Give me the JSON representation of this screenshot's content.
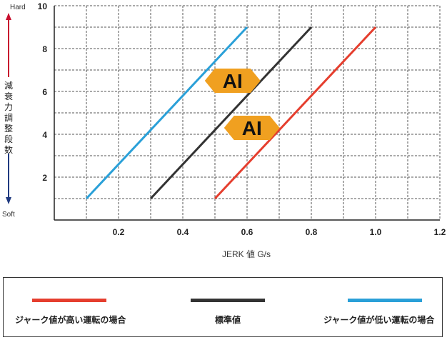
{
  "chart_data": {
    "type": "line",
    "xlabel": "JERK 値 G/s",
    "ylabel": "減衰力調整段数",
    "y_top_label": "Hard",
    "y_bottom_label": "Soft",
    "xlim": [
      0,
      1.2
    ],
    "ylim": [
      0,
      10
    ],
    "x_ticks": [
      "0.2",
      "0.4",
      "0.6",
      "0.8",
      "1.0",
      "1.2"
    ],
    "y_ticks": [
      "2",
      "4",
      "6",
      "8",
      "10"
    ],
    "grid": true,
    "series": [
      {
        "name": "ジャーク値が低い運転の場合",
        "color": "#2aa0d8",
        "x": [
          0.1,
          0.6
        ],
        "y": [
          1,
          9
        ]
      },
      {
        "name": "標準値",
        "color": "#333333",
        "x": [
          0.3,
          0.8
        ],
        "y": [
          1,
          9
        ]
      },
      {
        "name": "ジャーク値が高い運転の場合",
        "color": "#e53e2e",
        "x": [
          0.5,
          1.0
        ],
        "y": [
          1,
          9
        ]
      }
    ],
    "annotations": [
      {
        "text": "AI",
        "x": 0.555,
        "y": 6.5,
        "color": "#f0a020"
      },
      {
        "text": "AI",
        "x": 0.615,
        "y": 4.3,
        "color": "#f0a020"
      }
    ]
  },
  "legend": {
    "placement": "bottom",
    "items": [
      {
        "label": "ジャーク値が高い運転の場合",
        "color": "#e53e2e"
      },
      {
        "label": "標準値",
        "color": "#333333"
      },
      {
        "label": "ジャーク値が低い運転の場合",
        "color": "#2aa0d8"
      }
    ]
  }
}
